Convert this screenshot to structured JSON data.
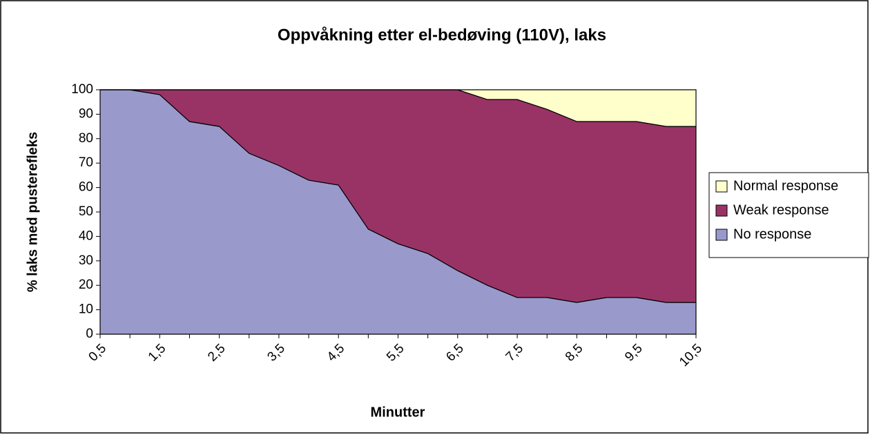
{
  "chart_data": {
    "type": "stacked_area",
    "title": "Oppvåkning etter el-bedøving (110V), laks",
    "x_label": "Minutter",
    "y_label": "% laks med pusterefleks",
    "categories": [
      "0,5",
      null,
      "1,5",
      null,
      "2,5",
      null,
      "3,5",
      null,
      "4,5",
      null,
      "5,5",
      null,
      "6,5",
      null,
      "7,5",
      null,
      "8,5",
      null,
      "9,5",
      null,
      "10,5"
    ],
    "series": [
      {
        "name": "No response",
        "color": "#9999cc",
        "values": [
          100,
          100,
          98,
          87,
          85,
          74,
          69,
          63,
          61,
          43,
          37,
          33,
          26,
          20,
          15,
          15,
          13,
          15,
          15,
          13,
          13
        ]
      },
      {
        "name": "Weak response",
        "color": "#993366",
        "values": [
          0,
          0,
          2,
          13,
          15,
          26,
          31,
          37,
          39,
          57,
          63,
          67,
          74,
          76,
          81,
          77,
          74,
          72,
          72,
          72,
          72
        ]
      },
      {
        "name": "Normal response",
        "color": "#ffffcc",
        "values": [
          0,
          0,
          0,
          0,
          0,
          0,
          0,
          0,
          0,
          0,
          0,
          0,
          0,
          4,
          4,
          8,
          13,
          13,
          13,
          15,
          15
        ]
      }
    ],
    "ylim": [
      0,
      100
    ],
    "yticks": [
      0,
      10,
      20,
      30,
      40,
      50,
      60,
      70,
      80,
      90,
      100
    ],
    "legend": "right"
  }
}
